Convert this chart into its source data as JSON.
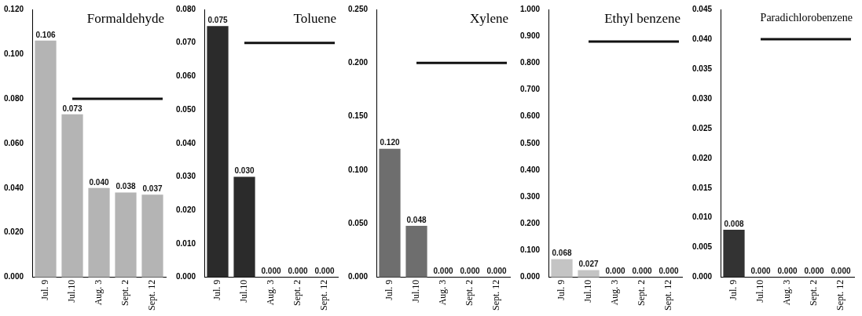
{
  "chart_data": [
    {
      "type": "bar",
      "title": "Formaldehyde",
      "categories": [
        "Jul. 9",
        "Jul.10",
        "Aug. 3",
        "Sept. 2",
        "Sept. 12"
      ],
      "values": [
        0.106,
        0.073,
        0.04,
        0.038,
        0.037
      ],
      "value_labels": [
        "0.106",
        "0.073",
        "0.040",
        "0.038",
        "0.037"
      ],
      "color": "#b4b4b4",
      "ylim": [
        0,
        0.12
      ],
      "yticks": [
        {
          "value": 0,
          "label": "0.000"
        },
        {
          "value": 0.02,
          "label": "0.020"
        },
        {
          "value": 0.04,
          "label": "0.040"
        },
        {
          "value": 0.06,
          "label": "0.060"
        },
        {
          "value": 0.08,
          "label": "0.080"
        },
        {
          "value": 0.1,
          "label": "0.100"
        },
        {
          "value": 0.12,
          "label": "0.120"
        }
      ],
      "ref_lines": [
        {
          "axis": "y",
          "value": 0.08,
          "color": "#111111"
        }
      ],
      "grid": false,
      "legend": false
    },
    {
      "type": "bar",
      "title": "Toluene",
      "categories": [
        "Jul. 9",
        "Jul.10",
        "Aug. 3",
        "Sept. 2",
        "Sept. 12"
      ],
      "values": [
        0.075,
        0.03,
        0,
        0,
        0
      ],
      "value_labels": [
        "0.075",
        "0.030",
        "0.000",
        "0.000",
        "0.000"
      ],
      "color": "#2b2b2b",
      "ylim": [
        0,
        0.08
      ],
      "yticks": [
        {
          "value": 0,
          "label": "0.000"
        },
        {
          "value": 0.01,
          "label": "0.010"
        },
        {
          "value": 0.02,
          "label": "0.020"
        },
        {
          "value": 0.03,
          "label": "0.030"
        },
        {
          "value": 0.04,
          "label": "0.040"
        },
        {
          "value": 0.05,
          "label": "0.050"
        },
        {
          "value": 0.06,
          "label": "0.060"
        },
        {
          "value": 0.07,
          "label": "0.070"
        },
        {
          "value": 0.08,
          "label": "0.080"
        }
      ],
      "ref_lines": [
        {
          "axis": "y",
          "value": 0.07,
          "color": "#111111"
        }
      ],
      "grid": false,
      "legend": false
    },
    {
      "type": "bar",
      "title": "Xylene",
      "categories": [
        "Jul. 9",
        "Jul.10",
        "Aug. 3",
        "Sept. 2",
        "Sept. 12"
      ],
      "values": [
        0.12,
        0.048,
        0,
        0,
        0
      ],
      "value_labels": [
        "0.120",
        "0.048",
        "0.000",
        "0.000",
        "0.000"
      ],
      "color": "#6e6e6e",
      "ylim": [
        0,
        0.25
      ],
      "yticks": [
        {
          "value": 0,
          "label": "0.000"
        },
        {
          "value": 0.05,
          "label": "0.050"
        },
        {
          "value": 0.1,
          "label": "0.100"
        },
        {
          "value": 0.15,
          "label": "0.150"
        },
        {
          "value": 0.2,
          "label": "0.200"
        },
        {
          "value": 0.25,
          "label": "0.250"
        }
      ],
      "ref_lines": [
        {
          "axis": "y",
          "value": 0.2,
          "color": "#111111"
        }
      ],
      "grid": false,
      "legend": false
    },
    {
      "type": "bar",
      "title": "Ethyl benzene",
      "categories": [
        "Jul. 9",
        "Jul.10",
        "Aug. 3",
        "Sept. 2",
        "Sept. 12"
      ],
      "values": [
        0.068,
        0.027,
        0,
        0,
        0
      ],
      "value_labels": [
        "0.068",
        "0.027",
        "0.000",
        "0.000",
        "0.000"
      ],
      "color": "#c4c4c4",
      "ylim": [
        0,
        1
      ],
      "yticks": [
        {
          "value": 0,
          "label": "0.000"
        },
        {
          "value": 0.1,
          "label": "0.100"
        },
        {
          "value": 0.2,
          "label": "0.200"
        },
        {
          "value": 0.3,
          "label": "0.300"
        },
        {
          "value": 0.4,
          "label": "0.400"
        },
        {
          "value": 0.5,
          "label": "0.500"
        },
        {
          "value": 0.6,
          "label": "0.600"
        },
        {
          "value": 0.7,
          "label": "0.700"
        },
        {
          "value": 0.8,
          "label": "0.800"
        },
        {
          "value": 0.9,
          "label": "0.900"
        },
        {
          "value": 1,
          "label": "1.000"
        }
      ],
      "ref_lines": [
        {
          "axis": "y",
          "value": 0.88,
          "color": "#111111"
        }
      ],
      "grid": false,
      "legend": false
    },
    {
      "type": "bar",
      "title": "Paradichlorobenzene",
      "categories": [
        "Jul. 9",
        "Jul.10",
        "Aug. 3",
        "Sept. 2",
        "Sept. 12"
      ],
      "values": [
        0.008,
        0,
        0,
        0,
        0
      ],
      "value_labels": [
        "0.008",
        "0.000",
        "0.000",
        "0.000",
        "0.000"
      ],
      "color": "#333333",
      "ylim": [
        0,
        0.045
      ],
      "yticks": [
        {
          "value": 0,
          "label": "0.000"
        },
        {
          "value": 0.005,
          "label": "0.005"
        },
        {
          "value": 0.01,
          "label": "0.010"
        },
        {
          "value": 0.015,
          "label": "0.015"
        },
        {
          "value": 0.02,
          "label": "0.020"
        },
        {
          "value": 0.025,
          "label": "0.025"
        },
        {
          "value": 0.03,
          "label": "0.030"
        },
        {
          "value": 0.035,
          "label": "0.035"
        },
        {
          "value": 0.04,
          "label": "0.040"
        },
        {
          "value": 0.045,
          "label": "0.045"
        }
      ],
      "ref_lines": [
        {
          "axis": "y",
          "value": 0.04,
          "color": "#111111"
        }
      ],
      "grid": false,
      "legend": false
    }
  ]
}
